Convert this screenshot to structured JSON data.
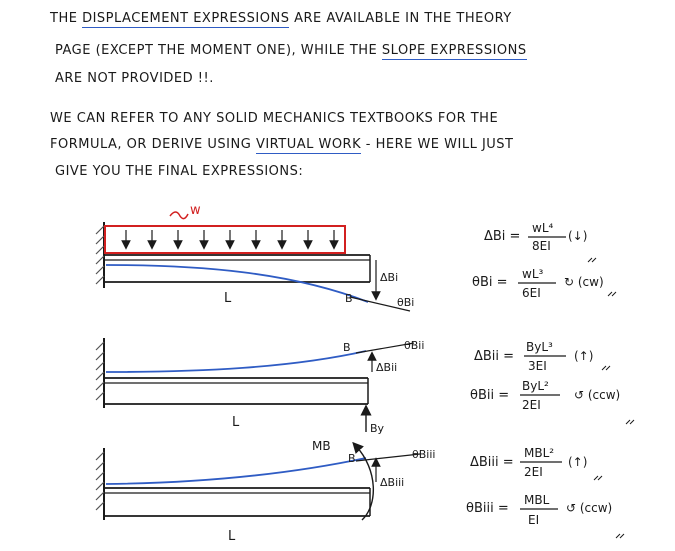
{
  "intro": {
    "p1_l1_a": "The ",
    "p1_l1_u": "displacement expressions",
    "p1_l1_b": " are available in the theory",
    "p1_l2_a": "page (except the moment one), while the ",
    "p1_l2_u": "slope expressions",
    "p1_l3": "are not provided !!.",
    "p2_l1": "We can refer to any solid mechanics textbooks for the",
    "p2_l2_a": "formula, or derive using ",
    "p2_l2_u": "virtual work",
    "p2_l2_b": " - here we will just",
    "p2_l3": "give you the final expressions:"
  },
  "diagram1": {
    "load_label": "w",
    "span_label": "L",
    "end_label": "B",
    "defl_label": "ΔBi",
    "slope_label": "θBi"
  },
  "diagram2": {
    "span_label": "L",
    "end_label": "B",
    "defl_label": "ΔBii",
    "slope_label": "θBii",
    "force_label": "By"
  },
  "diagram3": {
    "span_label": "L",
    "end_label": "B",
    "defl_label": "ΔBiii",
    "slope_label": "θBiii",
    "moment_label": "MB"
  },
  "formulas": {
    "f1": {
      "lhs": "ΔBi =",
      "num": "wL⁴",
      "den": "8EI",
      "dir": "(↓)"
    },
    "f2": {
      "lhs": "θBi =",
      "num": "wL³",
      "den": "6EI",
      "dir": "↻ (cw)"
    },
    "f3": {
      "lhs": "ΔBii =",
      "num": "ByL³",
      "den": "3EI",
      "dir": "(↑)"
    },
    "f4": {
      "lhs": "θBii =",
      "num": "ByL²",
      "den": "2EI",
      "dir": "↺ (ccw)"
    },
    "f5": {
      "lhs": "ΔBiii =",
      "num": "MBL²",
      "den": "2EI",
      "dir": "(↑)"
    },
    "f6": {
      "lhs": "θBiii =",
      "num": "MBL",
      "den": "EI",
      "dir": "↺ (ccw)"
    }
  },
  "colors": {
    "ink": "#1a1a1a",
    "blue": "#2f5cc4",
    "red": "#d22020",
    "hatch": "#555555"
  }
}
